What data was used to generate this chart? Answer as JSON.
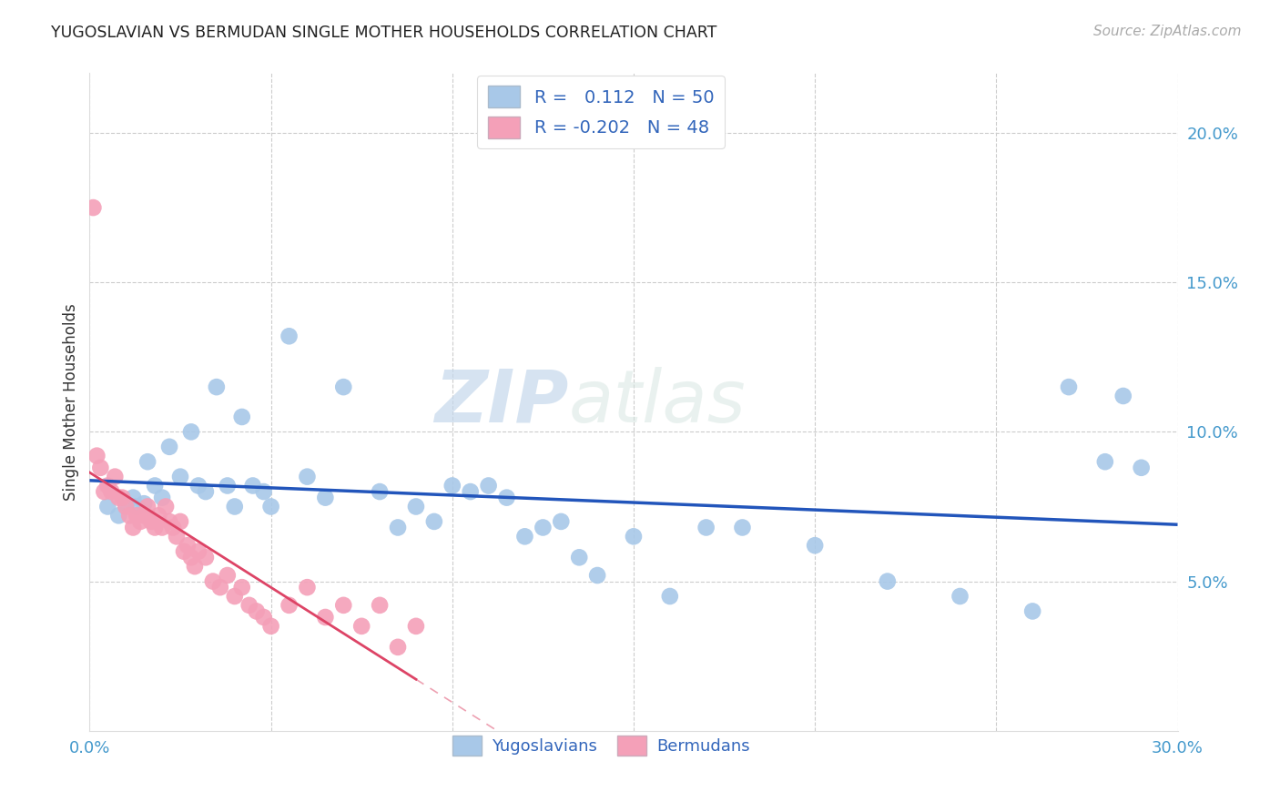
{
  "title": "YUGOSLAVIAN VS BERMUDAN SINGLE MOTHER HOUSEHOLDS CORRELATION CHART",
  "source": "Source: ZipAtlas.com",
  "ylabel": "Single Mother Households",
  "xlim": [
    0.0,
    0.3
  ],
  "ylim": [
    0.0,
    0.22
  ],
  "yticks": [
    0.05,
    0.1,
    0.15,
    0.2
  ],
  "ytick_labels": [
    "5.0%",
    "10.0%",
    "15.0%",
    "20.0%"
  ],
  "xticks": [
    0.0,
    0.05,
    0.1,
    0.15,
    0.2,
    0.25,
    0.3
  ],
  "blue_R": 0.112,
  "blue_N": 50,
  "pink_R": -0.202,
  "pink_N": 48,
  "blue_color": "#a8c8e8",
  "pink_color": "#f4a0b8",
  "blue_line_color": "#2255bb",
  "pink_line_color": "#dd4466",
  "watermark_zip": "ZIP",
  "watermark_atlas": "atlas",
  "blue_points_x": [
    0.005,
    0.008,
    0.01,
    0.012,
    0.013,
    0.015,
    0.016,
    0.018,
    0.02,
    0.022,
    0.025,
    0.028,
    0.03,
    0.032,
    0.035,
    0.038,
    0.04,
    0.042,
    0.045,
    0.048,
    0.05,
    0.055,
    0.06,
    0.065,
    0.07,
    0.08,
    0.085,
    0.09,
    0.095,
    0.1,
    0.105,
    0.11,
    0.115,
    0.12,
    0.125,
    0.13,
    0.135,
    0.14,
    0.15,
    0.16,
    0.17,
    0.18,
    0.2,
    0.22,
    0.24,
    0.26,
    0.27,
    0.28,
    0.285,
    0.29
  ],
  "blue_points_y": [
    0.075,
    0.072,
    0.076,
    0.078,
    0.075,
    0.076,
    0.09,
    0.082,
    0.078,
    0.095,
    0.085,
    0.1,
    0.082,
    0.08,
    0.115,
    0.082,
    0.075,
    0.105,
    0.082,
    0.08,
    0.075,
    0.132,
    0.085,
    0.078,
    0.115,
    0.08,
    0.068,
    0.075,
    0.07,
    0.082,
    0.08,
    0.082,
    0.078,
    0.065,
    0.068,
    0.07,
    0.058,
    0.052,
    0.065,
    0.045,
    0.068,
    0.068,
    0.062,
    0.05,
    0.045,
    0.04,
    0.115,
    0.09,
    0.112,
    0.088
  ],
  "pink_points_x": [
    0.001,
    0.002,
    0.003,
    0.004,
    0.005,
    0.006,
    0.007,
    0.008,
    0.009,
    0.01,
    0.011,
    0.012,
    0.013,
    0.014,
    0.015,
    0.016,
    0.017,
    0.018,
    0.019,
    0.02,
    0.021,
    0.022,
    0.023,
    0.024,
    0.025,
    0.026,
    0.027,
    0.028,
    0.029,
    0.03,
    0.032,
    0.034,
    0.036,
    0.038,
    0.04,
    0.042,
    0.044,
    0.046,
    0.048,
    0.05,
    0.055,
    0.06,
    0.065,
    0.07,
    0.075,
    0.08,
    0.085,
    0.09
  ],
  "pink_points_y": [
    0.175,
    0.092,
    0.088,
    0.08,
    0.082,
    0.08,
    0.085,
    0.078,
    0.078,
    0.075,
    0.072,
    0.068,
    0.072,
    0.07,
    0.072,
    0.075,
    0.07,
    0.068,
    0.072,
    0.068,
    0.075,
    0.07,
    0.068,
    0.065,
    0.07,
    0.06,
    0.062,
    0.058,
    0.055,
    0.06,
    0.058,
    0.05,
    0.048,
    0.052,
    0.045,
    0.048,
    0.042,
    0.04,
    0.038,
    0.035,
    0.042,
    0.048,
    0.038,
    0.042,
    0.035,
    0.042,
    0.028,
    0.035
  ]
}
